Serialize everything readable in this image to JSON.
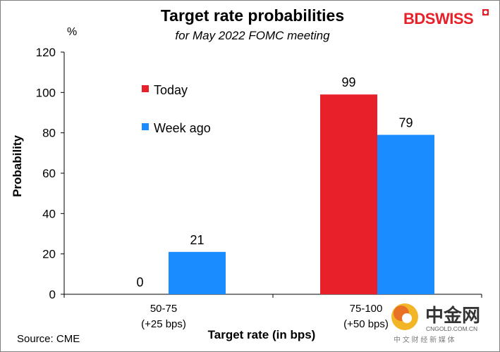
{
  "chart_data": {
    "type": "bar",
    "title": "Target rate probabilities",
    "subtitle": "for May 2022 FOMC meeting",
    "unit_label": "%",
    "ylabel": "Probability",
    "xlabel": "Target rate (in bps)",
    "ylim": [
      0,
      120
    ],
    "yticks": [
      0,
      20,
      40,
      60,
      80,
      100,
      120
    ],
    "categories": [
      {
        "line1": "50-75",
        "line2": "(+25 bps)"
      },
      {
        "line1": "75-100",
        "line2": "(+50 bps)"
      }
    ],
    "series": [
      {
        "name": "Today",
        "color": "#e8202a",
        "values": [
          0,
          99
        ]
      },
      {
        "name": "Week ago",
        "color": "#1a8cff",
        "values": [
          21,
          79
        ]
      }
    ],
    "source": "Source: CME"
  },
  "brand": {
    "logo_text": "BDSWISS",
    "logo_color": "#e8202a"
  },
  "watermark": {
    "main": "中金网",
    "sub": "CNGOLD.COM.CN",
    "sub2": "中 文 财 经 新 媒 体"
  }
}
